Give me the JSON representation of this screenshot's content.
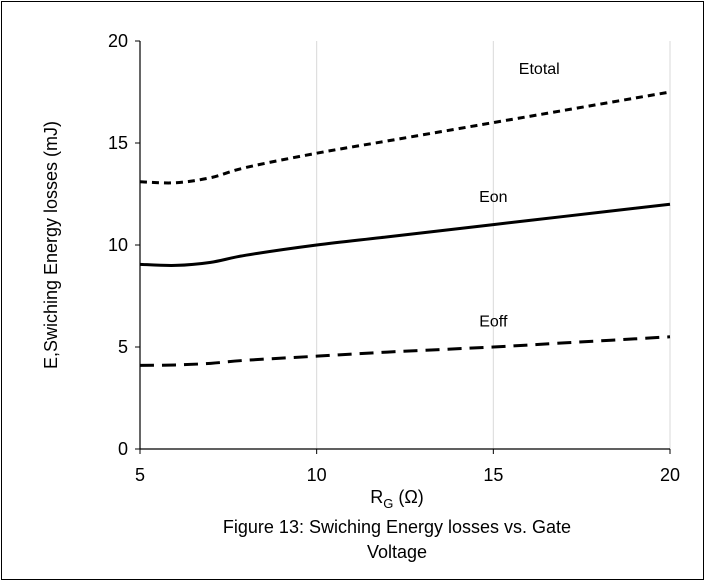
{
  "chart_data": {
    "type": "line",
    "xlabel_main": "R",
    "xlabel_sub": "G",
    "xlabel_unit": " (Ω)",
    "ylabel": "E,Swiching Energy losses (mJ)",
    "xlim": [
      5,
      20
    ],
    "ylim": [
      0,
      20
    ],
    "xticks": [
      5,
      10,
      15,
      20
    ],
    "yticks": [
      0,
      5,
      10,
      15,
      20
    ],
    "grid": "vertical",
    "caption": [
      "Figure 13: Swiching Energy losses vs. Gate",
      "Voltage"
    ],
    "series": [
      {
        "name": "Etotal",
        "style": "short-dash",
        "x": [
          5,
          6,
          7,
          8,
          10,
          12,
          15,
          17,
          20
        ],
        "y": [
          13.1,
          13.05,
          13.3,
          13.8,
          14.5,
          15.1,
          16.0,
          16.6,
          17.5
        ]
      },
      {
        "name": "Eon",
        "style": "solid",
        "x": [
          5,
          6,
          7,
          8,
          10,
          12,
          15,
          17,
          20
        ],
        "y": [
          9.05,
          9.0,
          9.15,
          9.5,
          10.0,
          10.4,
          11.0,
          11.4,
          12.0
        ]
      },
      {
        "name": "Eoff",
        "style": "long-dash",
        "x": [
          5,
          6,
          7,
          8,
          10,
          12,
          15,
          17,
          20
        ],
        "y": [
          4.1,
          4.12,
          4.2,
          4.35,
          4.55,
          4.75,
          5.0,
          5.2,
          5.5
        ]
      }
    ]
  },
  "colors": {
    "line": "#000000",
    "grid": "#d9d9d9",
    "axis": "#000000"
  }
}
